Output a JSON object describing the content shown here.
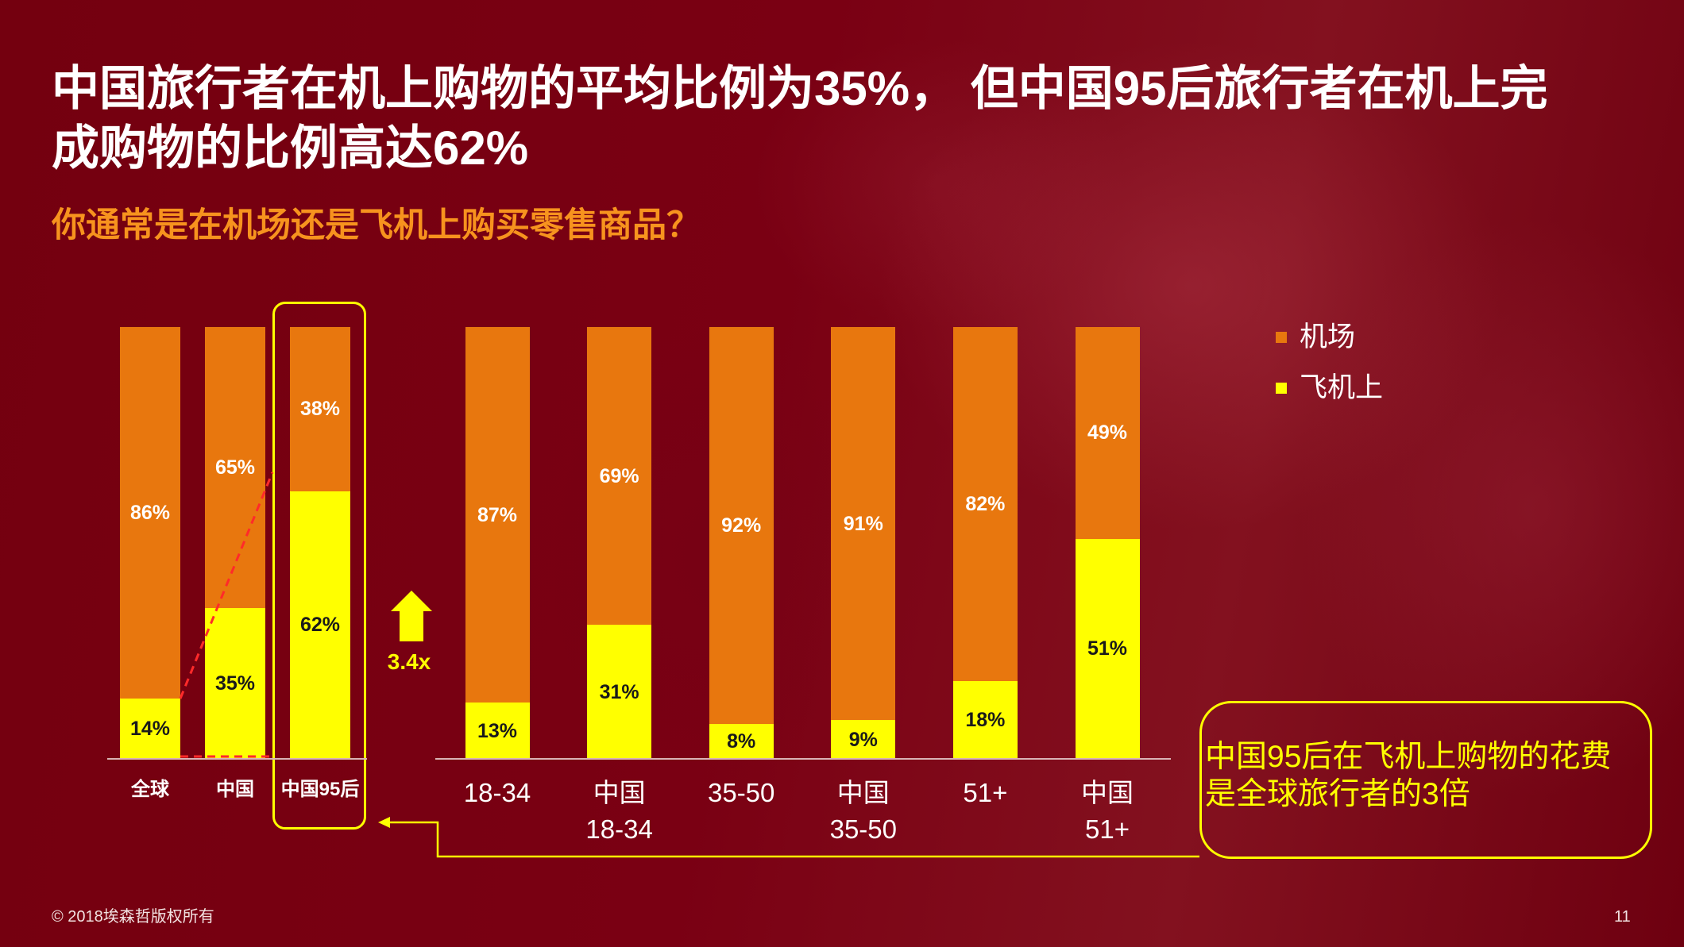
{
  "slide": {
    "title_lines": [
      "中国旅行者在机上购物的平均比例为35%， 但中国95后旅行者在机上完",
      "成购物的比例高达62%"
    ],
    "footer_copyright": "© 2018埃森哲版权所有",
    "page_number": "11",
    "colors": {
      "background": "#7A0013",
      "subtitle": "#F7931E",
      "highlight": "#FFFF00",
      "dashed_line": "#FF2A2A"
    }
  },
  "chart_data": {
    "type": "bar",
    "stacked": true,
    "title": "你通常是在机场还是飞机上购买零售商品？",
    "categories": [
      "全球",
      "中国",
      "中国95后",
      "18-34",
      "中国\n18-34",
      "35-50",
      "中国\n35-50",
      "51+",
      "中国\n51+"
    ],
    "groups": [
      [
        0,
        1,
        2
      ],
      [
        3,
        4,
        5,
        6,
        7,
        8
      ]
    ],
    "series": [
      {
        "name": "机场",
        "color": "#E8770E",
        "values": [
          86,
          65,
          38,
          87,
          69,
          92,
          91,
          82,
          49
        ]
      },
      {
        "name": "飞机上",
        "color": "#FFFF00",
        "values": [
          14,
          35,
          62,
          13,
          31,
          8,
          9,
          18,
          51
        ]
      }
    ],
    "value_suffix": "%",
    "ylim": [
      0,
      100
    ],
    "grid": false,
    "legend": "right",
    "highlight_index": 2,
    "annotations": {
      "ratio_label": "3.4x",
      "callout": "中国95后在飞机上购物的花费\n是全球旅行者的3倍"
    }
  }
}
